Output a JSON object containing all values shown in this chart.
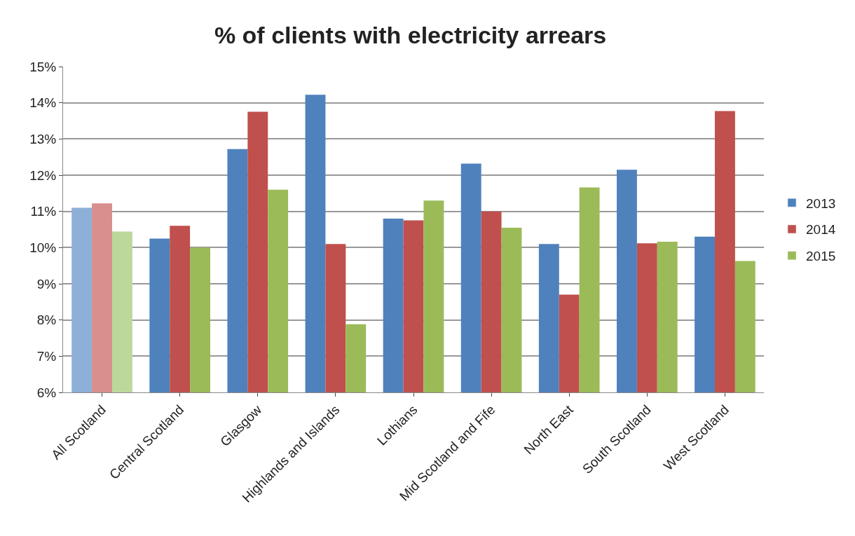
{
  "chart_data": {
    "type": "bar",
    "title": "% of clients with electricity arrears",
    "categories": [
      "All Scotland",
      "Central Scotland",
      "Glasgow",
      "Highlands and Islands",
      "Lothians",
      "Mid Scotland and Fife",
      "North East",
      "South Scotland",
      "West Scotland"
    ],
    "series": [
      {
        "name": "2013",
        "color": "#4f81bd",
        "colors": [
          "#8eb0d8",
          "#4f81bd",
          "#4f81bd",
          "#4f81bd",
          "#4f81bd",
          "#4f81bd",
          "#4f81bd",
          "#4f81bd",
          "#4f81bd"
        ],
        "values": [
          11.1,
          10.25,
          12.72,
          14.22,
          10.8,
          12.32,
          10.1,
          12.15,
          10.3
        ]
      },
      {
        "name": "2014",
        "color": "#c0504d",
        "colors": [
          "#d98f8d",
          "#c0504d",
          "#c0504d",
          "#c0504d",
          "#c0504d",
          "#c0504d",
          "#c0504d",
          "#c0504d",
          "#c0504d"
        ],
        "values": [
          11.22,
          10.6,
          13.75,
          10.1,
          10.75,
          11.0,
          8.7,
          10.12,
          13.77
        ]
      },
      {
        "name": "2015",
        "color": "#9bbb59",
        "colors": [
          "#bcd89b",
          "#9bbb59",
          "#9bbb59",
          "#9bbb59",
          "#9bbb59",
          "#9bbb59",
          "#9bbb59",
          "#9bbb59",
          "#9bbb59"
        ],
        "values": [
          10.44,
          10.0,
          11.6,
          7.88,
          11.3,
          10.55,
          11.66,
          10.16,
          9.63
        ]
      }
    ],
    "ylim": [
      6,
      15
    ],
    "yticks": [
      {
        "value": 6,
        "label": "6%"
      },
      {
        "value": 7,
        "label": "7%"
      },
      {
        "value": 8,
        "label": "8%"
      },
      {
        "value": 9,
        "label": "9%"
      },
      {
        "value": 10,
        "label": "10%"
      },
      {
        "value": 11,
        "label": "11%"
      },
      {
        "value": 12,
        "label": "12%"
      },
      {
        "value": 13,
        "label": "13%"
      },
      {
        "value": 14,
        "label": "14%"
      },
      {
        "value": 15,
        "label": "15%"
      }
    ],
    "grid": "y",
    "legend": "right"
  }
}
